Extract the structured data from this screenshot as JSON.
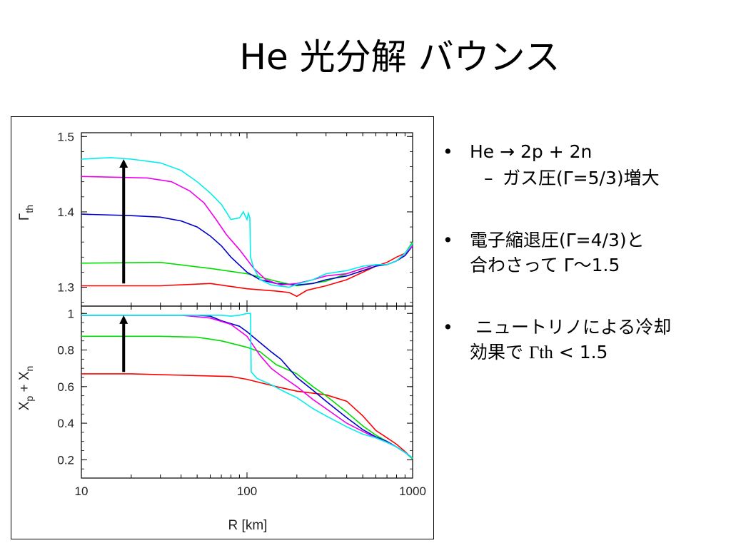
{
  "title": "He 光分解 バウンス",
  "bullets": [
    {
      "text": "He → 2p + 2n",
      "sub": "ガス圧(Γ=5/3)増大"
    },
    {
      "line1": "電子縮退圧(Γ=4/3)と",
      "line2": "合わさって Γ〜1.5"
    },
    {
      "line1": " ニュートリノによる冷却",
      "line2_prefix": "効果で ",
      "line2_serif": "Γth",
      "line2_suffix": " < 1.5"
    }
  ],
  "colors": {
    "red": "#ff0000",
    "green": "#00dd00",
    "blue": "#0000cc",
    "magenta": "#ee00ee",
    "cyan": "#00eeee",
    "arrow": "#000000"
  },
  "chart_data": [
    {
      "type": "line",
      "panel": "top",
      "ylabel_main": "Γ",
      "ylabel_sub": "th",
      "xscale": "log",
      "xlim": [
        10,
        1000
      ],
      "ylim": [
        1.275,
        1.505
      ],
      "yticks": [
        "1.5",
        "1.4",
        "1.3"
      ],
      "ytick_values": [
        1.5,
        1.4,
        1.3
      ],
      "annotation": "upward arrow at R≈18 km from Γth 1.305 to 1.47",
      "series": [
        {
          "color": "red",
          "points": [
            [
              10,
              1.302
            ],
            [
              30,
              1.302
            ],
            [
              60,
              1.305
            ],
            [
              100,
              1.298
            ],
            [
              150,
              1.295
            ],
            [
              180,
              1.293
            ],
            [
              200,
              1.288
            ],
            [
              230,
              1.296
            ],
            [
              300,
              1.302
            ],
            [
              400,
              1.31
            ],
            [
              500,
              1.32
            ],
            [
              600,
              1.328
            ],
            [
              700,
              1.333
            ],
            [
              800,
              1.34
            ],
            [
              900,
              1.345
            ],
            [
              1000,
              1.355
            ]
          ]
        },
        {
          "color": "green",
          "points": [
            [
              10,
              1.332
            ],
            [
              30,
              1.333
            ],
            [
              60,
              1.325
            ],
            [
              100,
              1.318
            ],
            [
              150,
              1.308
            ],
            [
              200,
              1.302
            ],
            [
              300,
              1.308
            ],
            [
              400,
              1.318
            ],
            [
              500,
              1.325
            ],
            [
              600,
              1.33
            ],
            [
              700,
              1.33
            ],
            [
              800,
              1.335
            ],
            [
              900,
              1.345
            ],
            [
              1000,
              1.36
            ]
          ]
        },
        {
          "color": "blue",
          "points": [
            [
              10,
              1.397
            ],
            [
              20,
              1.395
            ],
            [
              30,
              1.393
            ],
            [
              40,
              1.388
            ],
            [
              50,
              1.38
            ],
            [
              60,
              1.368
            ],
            [
              70,
              1.355
            ],
            [
              80,
              1.34
            ],
            [
              100,
              1.32
            ],
            [
              120,
              1.31
            ],
            [
              150,
              1.305
            ],
            [
              200,
              1.303
            ],
            [
              250,
              1.305
            ],
            [
              300,
              1.31
            ],
            [
              400,
              1.315
            ],
            [
              500,
              1.322
            ],
            [
              600,
              1.328
            ],
            [
              700,
              1.33
            ],
            [
              800,
              1.335
            ],
            [
              900,
              1.342
            ],
            [
              1000,
              1.355
            ]
          ]
        },
        {
          "color": "magenta",
          "points": [
            [
              10,
              1.447
            ],
            [
              25,
              1.445
            ],
            [
              35,
              1.44
            ],
            [
              45,
              1.428
            ],
            [
              55,
              1.412
            ],
            [
              65,
              1.39
            ],
            [
              75,
              1.37
            ],
            [
              90,
              1.35
            ],
            [
              110,
              1.325
            ],
            [
              130,
              1.31
            ],
            [
              160,
              1.303
            ],
            [
              200,
              1.305
            ],
            [
              250,
              1.31
            ],
            [
              300,
              1.315
            ],
            [
              400,
              1.318
            ],
            [
              500,
              1.325
            ],
            [
              600,
              1.33
            ],
            [
              700,
              1.33
            ],
            [
              800,
              1.335
            ],
            [
              900,
              1.345
            ],
            [
              1000,
              1.355
            ]
          ]
        },
        {
          "color": "cyan",
          "points": [
            [
              10,
              1.47
            ],
            [
              15,
              1.472
            ],
            [
              20,
              1.47
            ],
            [
              30,
              1.465
            ],
            [
              40,
              1.455
            ],
            [
              50,
              1.44
            ],
            [
              60,
              1.425
            ],
            [
              70,
              1.41
            ],
            [
              80,
              1.39
            ],
            [
              90,
              1.392
            ],
            [
              95,
              1.4
            ],
            [
              100,
              1.39
            ],
            [
              102,
              1.398
            ],
            [
              104,
              1.392
            ],
            [
              105,
              1.34
            ],
            [
              110,
              1.325
            ],
            [
              120,
              1.31
            ],
            [
              140,
              1.303
            ],
            [
              180,
              1.3
            ],
            [
              200,
              1.304
            ],
            [
              250,
              1.31
            ],
            [
              300,
              1.318
            ],
            [
              400,
              1.322
            ],
            [
              500,
              1.328
            ],
            [
              600,
              1.33
            ],
            [
              700,
              1.33
            ],
            [
              800,
              1.335
            ],
            [
              900,
              1.345
            ],
            [
              1000,
              1.358
            ]
          ]
        }
      ]
    },
    {
      "type": "line",
      "panel": "bottom",
      "ylabel": "X_p + X_n",
      "xlabel": "R [km]",
      "xscale": "log",
      "xlim": [
        10,
        1000
      ],
      "ylim": [
        0.1,
        1.04
      ],
      "xticks": [
        "10",
        "100",
        "1000"
      ],
      "xtick_values": [
        10,
        100,
        1000
      ],
      "yticks": [
        "1",
        "0.8",
        "0.6",
        "0.4",
        "0.2"
      ],
      "ytick_values": [
        1,
        0.8,
        0.6,
        0.4,
        0.2
      ],
      "annotation": "upward arrow at R≈18 km from 0.68 to 0.99",
      "series": [
        {
          "color": "red",
          "points": [
            [
              10,
              0.67
            ],
            [
              20,
              0.67
            ],
            [
              30,
              0.665
            ],
            [
              50,
              0.66
            ],
            [
              80,
              0.655
            ],
            [
              100,
              0.64
            ],
            [
              150,
              0.6
            ],
            [
              200,
              0.575
            ],
            [
              300,
              0.555
            ],
            [
              400,
              0.52
            ],
            [
              500,
              0.44
            ],
            [
              600,
              0.36
            ],
            [
              700,
              0.32
            ],
            [
              800,
              0.285
            ],
            [
              900,
              0.245
            ],
            [
              1000,
              0.205
            ]
          ]
        },
        {
          "color": "green",
          "points": [
            [
              10,
              0.875
            ],
            [
              30,
              0.875
            ],
            [
              50,
              0.87
            ],
            [
              70,
              0.85
            ],
            [
              100,
              0.815
            ],
            [
              120,
              0.79
            ],
            [
              150,
              0.72
            ],
            [
              200,
              0.67
            ],
            [
              250,
              0.6
            ],
            [
              300,
              0.55
            ],
            [
              400,
              0.46
            ],
            [
              500,
              0.385
            ],
            [
              600,
              0.335
            ],
            [
              700,
              0.3
            ],
            [
              800,
              0.27
            ],
            [
              900,
              0.24
            ],
            [
              1000,
              0.205
            ]
          ]
        },
        {
          "color": "blue",
          "points": [
            [
              10,
              0.99
            ],
            [
              30,
              0.99
            ],
            [
              50,
              0.99
            ],
            [
              60,
              0.985
            ],
            [
              70,
              0.96
            ],
            [
              90,
              0.93
            ],
            [
              100,
              0.9
            ],
            [
              120,
              0.84
            ],
            [
              140,
              0.79
            ],
            [
              160,
              0.75
            ],
            [
              200,
              0.65
            ],
            [
              250,
              0.58
            ],
            [
              300,
              0.52
            ],
            [
              400,
              0.43
            ],
            [
              500,
              0.365
            ],
            [
              600,
              0.325
            ],
            [
              700,
              0.3
            ],
            [
              800,
              0.27
            ],
            [
              900,
              0.24
            ],
            [
              1000,
              0.21
            ]
          ]
        },
        {
          "color": "magenta",
          "points": [
            [
              10,
              0.99
            ],
            [
              40,
              0.99
            ],
            [
              60,
              0.975
            ],
            [
              80,
              0.94
            ],
            [
              100,
              0.875
            ],
            [
              110,
              0.82
            ],
            [
              120,
              0.77
            ],
            [
              140,
              0.7
            ],
            [
              160,
              0.66
            ],
            [
              200,
              0.6
            ],
            [
              250,
              0.53
            ],
            [
              300,
              0.48
            ],
            [
              400,
              0.4
            ],
            [
              500,
              0.355
            ],
            [
              600,
              0.32
            ],
            [
              700,
              0.295
            ],
            [
              800,
              0.27
            ],
            [
              900,
              0.24
            ],
            [
              1000,
              0.21
            ]
          ]
        },
        {
          "color": "cyan",
          "points": [
            [
              10,
              0.99
            ],
            [
              50,
              0.99
            ],
            [
              70,
              0.99
            ],
            [
              80,
              0.985
            ],
            [
              90,
              0.99
            ],
            [
              100,
              1.0
            ],
            [
              105,
              1.0
            ],
            [
              106,
              0.68
            ],
            [
              115,
              0.645
            ],
            [
              140,
              0.61
            ],
            [
              170,
              0.57
            ],
            [
              200,
              0.54
            ],
            [
              250,
              0.48
            ],
            [
              300,
              0.44
            ],
            [
              400,
              0.38
            ],
            [
              500,
              0.34
            ],
            [
              600,
              0.32
            ],
            [
              700,
              0.295
            ],
            [
              800,
              0.27
            ],
            [
              900,
              0.24
            ],
            [
              1000,
              0.21
            ]
          ]
        }
      ]
    }
  ]
}
